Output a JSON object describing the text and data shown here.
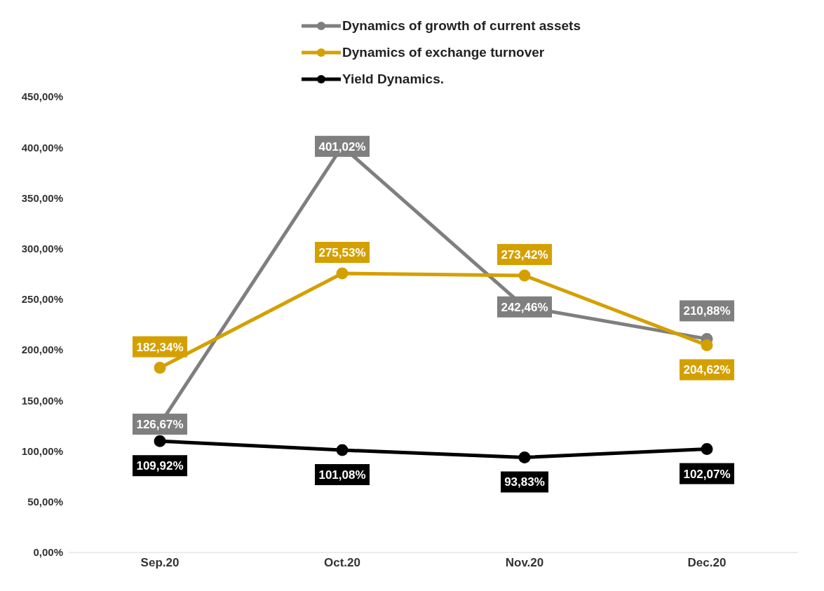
{
  "chart_data": {
    "type": "line",
    "categories": [
      "Sep.20",
      "Oct.20",
      "Nov.20",
      "Dec.20"
    ],
    "series": [
      {
        "name": "Dynamics of growth of current assets",
        "color": "#7f7f7f",
        "values": [
          126.67,
          401.02,
          242.46,
          210.88
        ],
        "value_labels": [
          "126,67%",
          "401,02%",
          "242,46%",
          "210,88%"
        ]
      },
      {
        "name": "Dynamics of exchange turnover",
        "color": "#d4a000",
        "values": [
          182.34,
          275.53,
          273.42,
          204.62
        ],
        "value_labels": [
          "182,34%",
          "275,53%",
          "273,42%",
          "204,62%"
        ]
      },
      {
        "name": "Yield Dynamics.",
        "color": "#000000",
        "values": [
          109.92,
          101.08,
          93.83,
          102.07
        ],
        "value_labels": [
          "109,92%",
          "101,08%",
          "93,83%",
          "102,07%"
        ]
      }
    ],
    "ylim": [
      0,
      450
    ],
    "yticks": [
      {
        "value": 0,
        "label": "0,00%"
      },
      {
        "value": 50,
        "label": "50,00%"
      },
      {
        "value": 100,
        "label": "100,00%"
      },
      {
        "value": 150,
        "label": "150,00%"
      },
      {
        "value": 200,
        "label": "200,00%"
      },
      {
        "value": 250,
        "label": "250,00%"
      },
      {
        "value": 300,
        "label": "300,00%"
      },
      {
        "value": 350,
        "label": "350,00%"
      },
      {
        "value": 400,
        "label": "400,00%"
      },
      {
        "value": 450,
        "label": "450,00%"
      }
    ],
    "grid": false,
    "legend": "top",
    "marker": "circle",
    "line_style": "solid"
  }
}
